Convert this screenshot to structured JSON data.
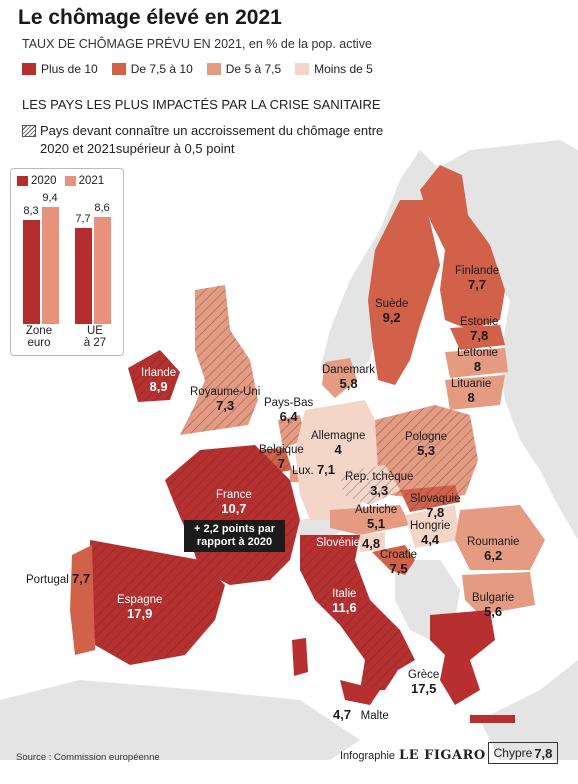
{
  "title": "Le chômage élevé en 2021",
  "subtitle_caps": "TAUX DE CHÔMAGE PRÉVU EN 2021",
  "subtitle_rest": ", en % de la pop. active",
  "colors": {
    "c10": "#b7302f",
    "c75": "#d2614a",
    "c5": "#e59a82",
    "c0": "#f4d6c8",
    "sea": "#ffffff",
    "land": "#e6e6e6",
    "bar2020": "#b32d2e",
    "bar2021": "#e8927b"
  },
  "legend": [
    {
      "label": "Plus de 10",
      "color": "#b7302f"
    },
    {
      "label": "De 7,5 à 10",
      "color": "#d2614a"
    },
    {
      "label": "De 5 à 7,5",
      "color": "#e59a82"
    },
    {
      "label": "Moins de 5",
      "color": "#f4d6c8"
    }
  ],
  "section_title": "LES PAYS LES PLUS IMPACTÉS PAR LA CRISE SANITAIRE",
  "hatch_legend": "Pays devant connaître un accroissement du chômage entre 2020 et 2021supérieur à 0,5 point",
  "chart_data": {
    "type": "bar",
    "categories": [
      "Zone euro",
      "UE à 27"
    ],
    "series": [
      {
        "name": "2020",
        "values": [
          8.3,
          7.7
        ],
        "labels": [
          "8,3",
          "7,7"
        ]
      },
      {
        "name": "2021",
        "values": [
          9.4,
          8.6
        ],
        "labels": [
          "9,4",
          "8,6"
        ]
      }
    ],
    "ylim": [
      0,
      10
    ]
  },
  "bar_cat_lines": [
    [
      "Zone",
      "euro"
    ],
    [
      "UE",
      "à 27"
    ]
  ],
  "countries": {
    "finlande": {
      "name": "Finlande",
      "value": "7,7"
    },
    "suede": {
      "name": "Suède",
      "value": "9,2"
    },
    "estonie": {
      "name": "Estonie",
      "value": "7,8"
    },
    "lettonie": {
      "name": "Lettonie",
      "value": "8"
    },
    "lituanie": {
      "name": "Lituanie",
      "value": "8"
    },
    "danemark": {
      "name": "Danemark",
      "value": "5,8"
    },
    "irlande": {
      "name": "Irlande",
      "value": "8,9"
    },
    "royaume_uni": {
      "name": "Royaume-Uni",
      "value": "7,3"
    },
    "pays_bas": {
      "name": "Pays-Bas",
      "value": "6,4"
    },
    "allemagne": {
      "name": "Allemagne",
      "value": "4"
    },
    "pologne": {
      "name": "Pologne",
      "value": "5,3"
    },
    "belgique": {
      "name": "Belgique",
      "value": "7"
    },
    "lux": {
      "name": "Lux.",
      "value": "7,1"
    },
    "rep_tcheque": {
      "name": "Rep. tchèque",
      "value": "3,3"
    },
    "slovaquie": {
      "name": "Slovaquie",
      "value": "7,8"
    },
    "france": {
      "name": "France",
      "value": "10,7"
    },
    "autriche": {
      "name": "Autriche",
      "value": "5,1"
    },
    "hongrie": {
      "name": "Hongrie",
      "value": "4,4"
    },
    "slovenie": {
      "name": "Slovénie",
      "value": "4,8"
    },
    "roumanie": {
      "name": "Roumanie",
      "value": "6,2"
    },
    "croatie": {
      "name": "Croatie",
      "value": "7,5"
    },
    "bulgarie": {
      "name": "Bulgarie",
      "value": "5,6"
    },
    "portugal": {
      "name": "Portugal",
      "value": "7,7"
    },
    "espagne": {
      "name": "Espagne",
      "value": "17,9"
    },
    "italie": {
      "name": "Italie",
      "value": "11,6"
    },
    "grece": {
      "name": "Grèce",
      "value": "17,5"
    },
    "malte": {
      "name": "Malte",
      "value": "4,7"
    },
    "chypre": {
      "name": "Chypre",
      "value": "7,8"
    }
  },
  "france_callout": "+ 2,2 points par rapport à 2020",
  "source": "Source : Commission européenne",
  "credit_label": "Infographie",
  "credit_brand": "LE FIGARO"
}
